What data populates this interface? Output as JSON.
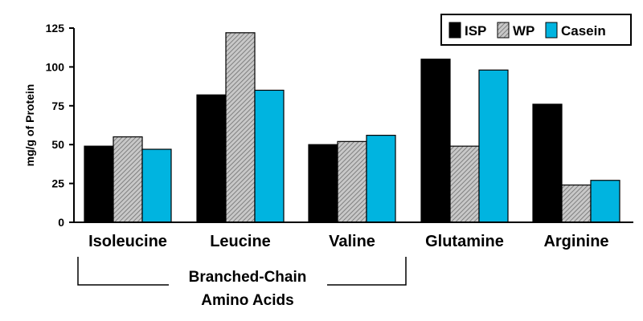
{
  "chart_data": {
    "type": "bar",
    "categories": [
      "Isoleucine",
      "Leucine",
      "Valine",
      "Glutamine",
      "Arginine"
    ],
    "series": [
      {
        "name": "ISP",
        "values": [
          49,
          82,
          50,
          105,
          76
        ],
        "color": "#000000",
        "pattern": "solid"
      },
      {
        "name": "WP",
        "values": [
          55,
          122,
          52,
          49,
          24
        ],
        "color": "#a8a8a8",
        "pattern": "hatched"
      },
      {
        "name": "Casein",
        "values": [
          47,
          85,
          56,
          98,
          27
        ],
        "color": "#00b4e0",
        "pattern": "solid"
      }
    ],
    "ylabel": "mg/g of Protein",
    "xlabel": "",
    "ylim": [
      0,
      125
    ],
    "yticks": [
      0,
      25,
      50,
      75,
      100,
      125
    ],
    "grid": false,
    "legend_position": "top-right",
    "group_annotation": {
      "label_line1": "Branched-Chain",
      "label_line2": "Amino Acids",
      "spans": [
        "Isoleucine",
        "Leucine",
        "Valine"
      ]
    }
  }
}
